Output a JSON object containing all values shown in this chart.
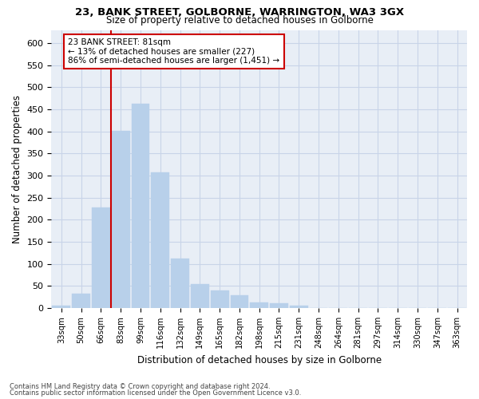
{
  "title_line1": "23, BANK STREET, GOLBORNE, WARRINGTON, WA3 3GX",
  "title_line2": "Size of property relative to detached houses in Golborne",
  "xlabel": "Distribution of detached houses by size in Golborne",
  "ylabel": "Number of detached properties",
  "footnote1": "Contains HM Land Registry data © Crown copyright and database right 2024.",
  "footnote2": "Contains public sector information licensed under the Open Government Licence v3.0.",
  "bar_labels": [
    "33sqm",
    "50sqm",
    "66sqm",
    "83sqm",
    "99sqm",
    "116sqm",
    "132sqm",
    "149sqm",
    "165sqm",
    "182sqm",
    "198sqm",
    "215sqm",
    "231sqm",
    "248sqm",
    "264sqm",
    "281sqm",
    "297sqm",
    "314sqm",
    "330sqm",
    "347sqm",
    "363sqm"
  ],
  "bar_values": [
    5,
    33,
    228,
    402,
    463,
    308,
    112,
    54,
    40,
    29,
    13,
    11,
    5,
    1,
    0,
    0,
    0,
    0,
    1,
    0,
    0
  ],
  "bar_color": "#b8d0ea",
  "bar_edge_color": "#b8d0ea",
  "grid_color": "#c8d4e8",
  "background_color": "#e8eef6",
  "annotation_box_color": "#cc0000",
  "vline_color": "#cc0000",
  "vline_x_index": 3,
  "annotation_title": "23 BANK STREET: 81sqm",
  "annotation_line1": "← 13% of detached houses are smaller (227)",
  "annotation_line2": "86% of semi-detached houses are larger (1,451) →",
  "ylim": [
    0,
    630
  ],
  "yticks": [
    0,
    50,
    100,
    150,
    200,
    250,
    300,
    350,
    400,
    450,
    500,
    550,
    600
  ]
}
